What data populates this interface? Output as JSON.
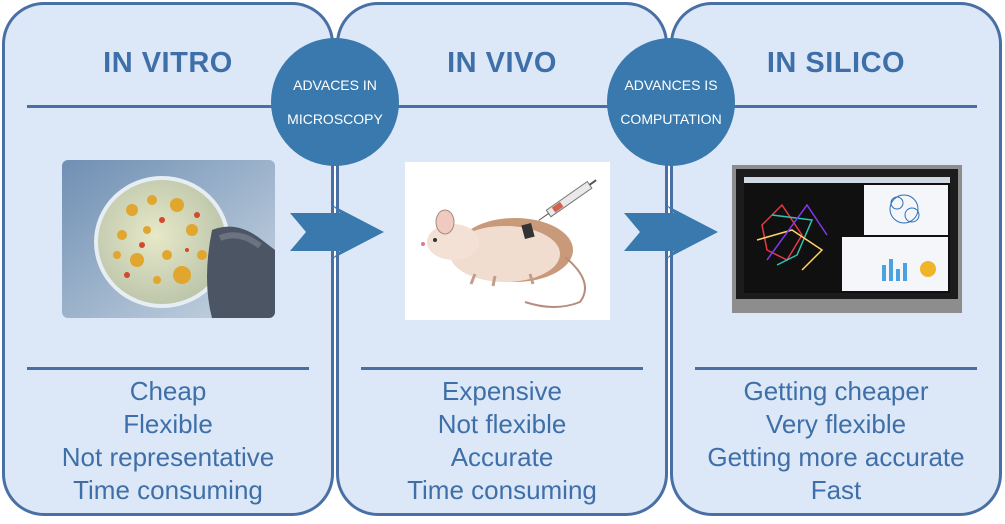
{
  "panels": [
    {
      "title": "IN VITRO",
      "items": [
        "Cheap",
        "Flexible",
        "Not representative",
        "Time consuming"
      ]
    },
    {
      "title": "IN VIVO",
      "items": [
        "Expensive",
        "Not flexible",
        "Accurate",
        "Time consuming"
      ]
    },
    {
      "title": "IN SILICO",
      "items": [
        "Getting cheaper",
        "Very flexible",
        "Getting more accurate",
        "Fast"
      ]
    }
  ],
  "transitions": [
    {
      "label_line1": "ADVACES IN",
      "label_line2": "MICROSCOPY"
    },
    {
      "label_line1": "ADVANCES IS",
      "label_line2": "COMPUTATION"
    }
  ],
  "colors": {
    "panel_fill": "#dce8f7",
    "panel_border": "#4a6fa5",
    "text": "#3f6fa8",
    "circle": "#3979ad",
    "arrow": "#3979ad"
  }
}
